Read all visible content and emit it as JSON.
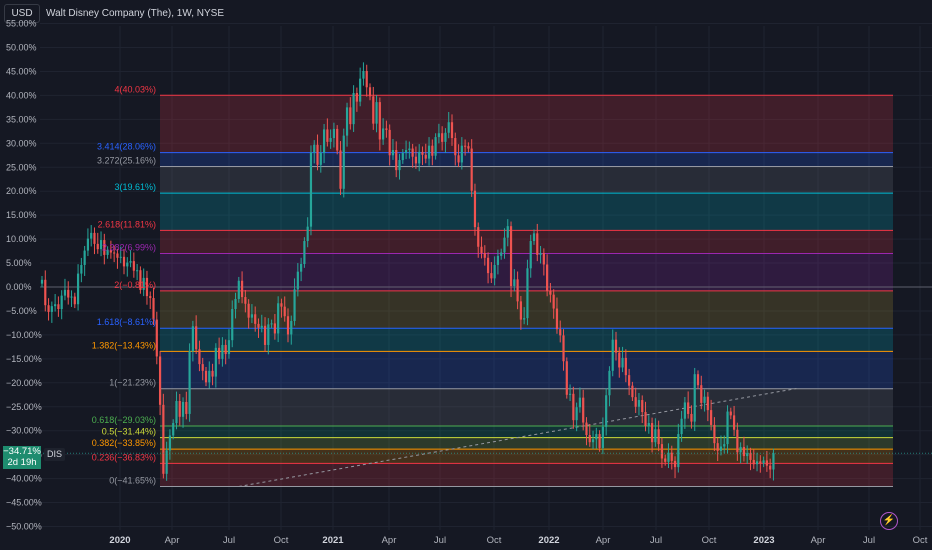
{
  "header": {
    "currency_label": "USD",
    "symbol_title": "Walt Disney Company (The), 1W, NYSE"
  },
  "price_tag": {
    "value": "−34.71%",
    "countdown": "2d 19h",
    "ticker": "DIS",
    "color": "#1e8c6f"
  },
  "footer": {
    "flash_icon": "lightning-icon"
  },
  "chart_data": {
    "type": "candlestick",
    "y_axis": {
      "unit": "percent",
      "range": [
        -52,
        57
      ],
      "ticks": [
        55,
        50,
        45,
        40,
        35,
        30,
        25,
        20,
        15,
        10,
        5,
        0,
        -5,
        -10,
        -15,
        -20,
        -25,
        -30,
        -35,
        -40,
        -45,
        -50
      ],
      "tick_labels": [
        "55.00%",
        "50.00%",
        "45.00%",
        "40.00%",
        "35.00%",
        "30.00%",
        "25.00%",
        "20.00%",
        "15.00%",
        "10.00%",
        "5.00%",
        "0.00%",
        "−5.00%",
        "−10.00%",
        "−15.00%",
        "−20.00%",
        "−25.00%",
        "−30.00%",
        "−35.00%",
        "−40.00%",
        "−45.00%",
        "−50.00%"
      ]
    },
    "x_axis": {
      "labels": [
        {
          "text": "2020",
          "bold": true
        },
        {
          "text": "Apr",
          "bold": false
        },
        {
          "text": "Jul",
          "bold": false
        },
        {
          "text": "Oct",
          "bold": false
        },
        {
          "text": "2021",
          "bold": true
        },
        {
          "text": "Apr",
          "bold": false
        },
        {
          "text": "Jul",
          "bold": false
        },
        {
          "text": "Oct",
          "bold": false
        },
        {
          "text": "2022",
          "bold": true
        },
        {
          "text": "Apr",
          "bold": false
        },
        {
          "text": "Jul",
          "bold": false
        },
        {
          "text": "Oct",
          "bold": false
        },
        {
          "text": "2023",
          "bold": true
        },
        {
          "text": "Apr",
          "bold": false
        },
        {
          "text": "Jul",
          "bold": false
        },
        {
          "text": "Oct",
          "bold": false
        }
      ]
    },
    "fib_extension_levels": [
      {
        "label": "4(40.03%)",
        "value": 40.03,
        "color": "#f23645"
      },
      {
        "label": "3.414(28.06%)",
        "value": 28.06,
        "color": "#2962ff"
      },
      {
        "label": "3.272(25.16%)",
        "value": 25.16,
        "color": "#9598a1"
      },
      {
        "label": "3(19.61%)",
        "value": 19.61,
        "color": "#00bcd4"
      },
      {
        "label": "2.618(11.81%)",
        "value": 11.81,
        "color": "#f23645"
      },
      {
        "label": "2.382(6.99%)",
        "value": 6.99,
        "color": "#9c27b0"
      },
      {
        "label": "2(−0.81%)",
        "value": -0.81,
        "color": "#f23645"
      },
      {
        "label": "1.618(−8.61%)",
        "value": -8.61,
        "color": "#2962ff"
      },
      {
        "label": "1.382(−13.43%)",
        "value": -13.43,
        "color": "#ff9800"
      },
      {
        "label": "1(−21.23%)",
        "value": -21.23,
        "color": "#9598a1"
      },
      {
        "label": "0.618(−29.03%)",
        "value": -29.03,
        "color": "#4caf50"
      },
      {
        "label": "0.5(−31.44%)",
        "value": -31.44,
        "color": "#cddc39"
      },
      {
        "label": "0.382(−33.85%)",
        "value": -33.85,
        "color": "#ff9800"
      },
      {
        "label": "0.236(−36.83%)",
        "value": -36.83,
        "color": "#f23645"
      },
      {
        "label": "0(−41.65%)",
        "value": -41.65,
        "color": "#9598a1"
      }
    ],
    "fill_bands": [
      {
        "from": 40.03,
        "to": 28.06,
        "color": "#f23645"
      },
      {
        "from": 28.06,
        "to": 25.16,
        "color": "#2962ff"
      },
      {
        "from": 25.16,
        "to": 19.61,
        "color": "#787b86"
      },
      {
        "from": 19.61,
        "to": 11.81,
        "color": "#00bcd4"
      },
      {
        "from": 11.81,
        "to": 6.99,
        "color": "#f23645"
      },
      {
        "from": 6.99,
        "to": -0.81,
        "color": "#9c27b0"
      },
      {
        "from": -0.81,
        "to": -8.61,
        "color": "#c0a030"
      },
      {
        "from": -8.61,
        "to": -13.43,
        "color": "#00bcd4"
      },
      {
        "from": -13.43,
        "to": -21.23,
        "color": "#2962ff"
      },
      {
        "from": -21.23,
        "to": -29.03,
        "color": "#787b86"
      },
      {
        "from": -29.03,
        "to": -31.44,
        "color": "#089981"
      },
      {
        "from": -31.44,
        "to": -33.85,
        "color": "#8bc34a"
      },
      {
        "from": -33.85,
        "to": -36.83,
        "color": "#ff9800"
      },
      {
        "from": -36.83,
        "to": -41.65,
        "color": "#f23645"
      }
    ],
    "trend_line": {
      "start": {
        "week": 60,
        "value": -41.65
      },
      "end": {
        "week": 230,
        "value": -21.2
      }
    },
    "last_value": -34.71,
    "series": [
      {
        "name": "DIS",
        "closes": [
          1.5,
          -3.8,
          -5.2,
          -4,
          -3.6,
          -4.6,
          -1.8,
          -0.6,
          -2.2,
          -2,
          -3.6,
          2.8,
          4.6,
          7.6,
          10.1,
          11.3,
          9,
          7.9,
          9.8,
          6.7,
          7.7,
          7.2,
          7,
          6.1,
          6.3,
          4.3,
          5.1,
          5.4,
          3.4,
          3.5,
          -0.6,
          1.9,
          -1.9,
          -2.3,
          -6.8,
          -14.5,
          -24.6,
          -39,
          -34.1,
          -31,
          -28.4,
          -23.8,
          -27.1,
          -24,
          -26.5,
          -13.4,
          -8.2,
          -13,
          -16.1,
          -17.5,
          -19.9,
          -17.5,
          -18.7,
          -12.7,
          -15,
          -12.1,
          -14,
          -11.1,
          -4.6,
          -2.5,
          1.3,
          -2.1,
          -3.5,
          -6.4,
          -5.7,
          -7.7,
          -8.5,
          -8.1,
          -12.1,
          -7.8,
          -7.6,
          -9.7,
          -3.4,
          -4.1,
          -6.1,
          -9.9,
          -7.1,
          -0.5,
          3.2,
          4.8,
          9.6,
          12.6,
          28.1,
          29.7,
          25.5,
          28,
          32.9,
          30.3,
          31.1,
          33,
          28.5,
          20.5,
          31.6,
          37.5,
          34,
          40.5,
          38.7,
          43.5,
          45.1,
          41.7,
          39.8,
          34.1,
          38.6,
          30.8,
          33.1,
          32.8,
          27.5,
          28.6,
          24.4,
          26.5,
          28,
          28.6,
          28.9,
          27.2,
          25.8,
          28.2,
          27.6,
          26.8,
          29.5,
          27.4,
          31.3,
          32.1,
          30.3,
          32.2,
          34.4,
          31.1,
          27.5,
          26,
          29.5,
          29.4,
          28.9,
          20.1,
          12.5,
          8.4,
          7.1,
          6.1,
          2.9,
          1.8,
          4.6,
          6.5,
          7.2,
          10.3,
          12.7,
          0.2,
          1.6,
          -3,
          -6.8,
          -6.5,
          3.9,
          9.6,
          11.2,
          6.7,
          7.1,
          4.7,
          -0.8,
          -1.6,
          -4.5,
          -8.8,
          -10.1,
          -15.5,
          -22.5,
          -22.3,
          -27.8,
          -25.1,
          -23.1,
          -28.3,
          -30.9,
          -32.4,
          -31.8,
          -30.7,
          -33.6,
          -29.2,
          -22.6,
          -17.5,
          -11,
          -13.7,
          -16.8,
          -14.8,
          -18.4,
          -20.6,
          -23,
          -25,
          -23.6,
          -26.1,
          -29,
          -28.4,
          -32.4,
          -29.7,
          -32.8,
          -35.8,
          -36.5,
          -34.6,
          -36.3,
          -37.6,
          -30.7,
          -27.5,
          -24.1,
          -26.5,
          -28.1,
          -18.2,
          -20.5,
          -24.2,
          -22.9,
          -25.7,
          -28.8,
          -32.6,
          -34.2,
          -33.3,
          -32.8,
          -26,
          -26.8,
          -29.8,
          -34.5,
          -33.4,
          -35.3,
          -34.7,
          -36.1,
          -37,
          -36.4,
          -36.8,
          -36.2,
          -37.3,
          -38.1,
          -34.7
        ]
      }
    ]
  }
}
